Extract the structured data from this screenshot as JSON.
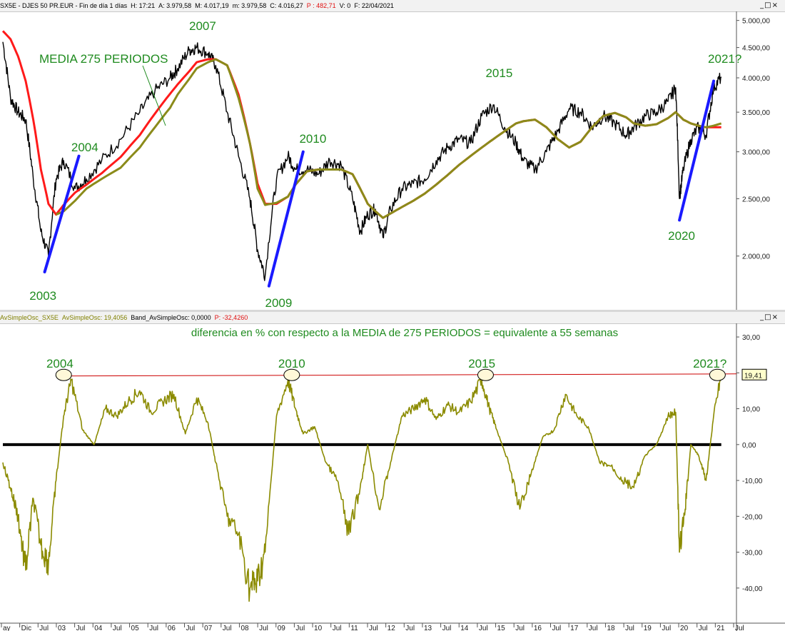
{
  "top_pane": {
    "title_parts": [
      {
        "text": "SX5E - DJES 50 PR.EUR - Fin de día 1 días",
        "color": "#000000"
      },
      {
        "text": "H: 17:21",
        "color": "#000000"
      },
      {
        "text": "A: 3.979,58",
        "color": "#000000"
      },
      {
        "text": "M: 4.017,19",
        "color": "#000000"
      },
      {
        "text": "m: 3.979,58",
        "color": "#000000"
      },
      {
        "text": "C: 4.016,27",
        "color": "#000000"
      },
      {
        "text": "P : 482,71",
        "color": "#e01010"
      },
      {
        "text": "V: 0",
        "color": "#000000"
      },
      {
        "text": "F: 22/04/2021",
        "color": "#000000"
      }
    ],
    "window_buttons": "_□×"
  },
  "bottom_pane": {
    "title_parts": [
      {
        "text": "AvSimpleOsc_SX5E",
        "color": "#808000"
      },
      {
        "text": "AvSimpleOsc: 19,4056",
        "color": "#808000"
      },
      {
        "text": "Band_AvSimpleOsc: 0,0000",
        "color": "#000000"
      },
      {
        "text": "P: -32,4260",
        "color": "#e01010"
      }
    ],
    "window_buttons": "_□×"
  },
  "colors": {
    "price": "#000000",
    "ma_red": "#ff1a1a",
    "ma_olive": "#8b8b1a",
    "trend_blue": "#1a1aff",
    "osc": "#8b8b00",
    "annotation": "#1f8b1f",
    "ref_line": "#cc0000"
  },
  "x_axis": {
    "labels": [
      "ay",
      "Dic",
      "Jul",
      "03",
      "Jul",
      "04",
      "Jul",
      "05",
      "Jul",
      "06",
      "Jul",
      "07",
      "Jul",
      "08",
      "Jul",
      "09",
      "Jul",
      "10",
      "Jul",
      "11",
      "Jul",
      "12",
      "Jul",
      "13",
      "Jul",
      "14",
      "Jul",
      "15",
      "Jul",
      "16",
      "Jul",
      "17",
      "Jul",
      "18",
      "Jul",
      "19",
      "Jul",
      "20",
      "Jul",
      "21",
      "Jul"
    ]
  },
  "chart_data": [
    {
      "type": "line",
      "y_scale": "log",
      "ylim": [
        1650,
        5150
      ],
      "yticks": [
        "5.000,00",
        "4.500,00",
        "4.000,00",
        "3.500,00",
        "3.000,00",
        "2.500,00",
        "2.000,00"
      ],
      "ytick_values": [
        5000,
        4500,
        4000,
        3500,
        3000,
        2500,
        2000
      ],
      "x": [
        2002.4,
        2002.6,
        2002.8,
        2003.0,
        2003.2,
        2003.4,
        2003.6,
        2003.8,
        2004.0,
        2004.3,
        2004.6,
        2005.0,
        2005.5,
        2006.0,
        2006.4,
        2006.8,
        2007.0,
        2007.3,
        2007.5,
        2007.8,
        2008.0,
        2008.3,
        2008.6,
        2008.9,
        2009.1,
        2009.3,
        2009.6,
        2009.9,
        2010.1,
        2010.4,
        2010.7,
        2011.0,
        2011.3,
        2011.6,
        2011.8,
        2012.0,
        2012.2,
        2012.4,
        2012.6,
        2012.9,
        2013.2,
        2013.5,
        2013.8,
        2014.1,
        2014.4,
        2014.7,
        2015.0,
        2015.3,
        2015.6,
        2015.9,
        2016.1,
        2016.4,
        2016.7,
        2017.0,
        2017.3,
        2017.6,
        2017.9,
        2018.2,
        2018.5,
        2018.8,
        2019.0,
        2019.3,
        2019.6,
        2019.9,
        2020.1,
        2020.2,
        2020.3,
        2020.5,
        2020.7,
        2020.9,
        2021.1,
        2021.3
      ],
      "series": [
        {
          "key": "price",
          "style": "price",
          "values": [
            4600,
            3700,
            3500,
            3400,
            2700,
            2200,
            2000,
            2700,
            2900,
            2600,
            2700,
            2900,
            3150,
            3500,
            3800,
            4000,
            4150,
            4450,
            4500,
            4400,
            4200,
            3500,
            2950,
            2500,
            2050,
            1850,
            2700,
            2950,
            2800,
            2800,
            2750,
            2900,
            2850,
            2500,
            2200,
            2350,
            2400,
            2150,
            2400,
            2600,
            2650,
            2700,
            2900,
            3050,
            3150,
            3100,
            3450,
            3600,
            3300,
            3100,
            2900,
            2800,
            3000,
            3250,
            3550,
            3500,
            3300,
            3450,
            3350,
            3200,
            3300,
            3450,
            3500,
            3650,
            3850,
            2500,
            2800,
            3150,
            3300,
            3200,
            3850,
            4016
          ]
        },
        {
          "key": "ma_red",
          "style": "ma_red",
          "values": [
            4800,
            4650,
            4350,
            3950,
            3400,
            2800,
            2450,
            2350,
            2440,
            2560,
            2640,
            2760,
            2940,
            3200,
            3480,
            3760,
            3900,
            4100,
            4250,
            4300,
            4300,
            4200,
            3750,
            3100,
            2650,
            2450,
            2450,
            2520,
            2640,
            2780,
            2800,
            2800,
            2800,
            2750,
            2600,
            2450,
            2380,
            2320,
            2360,
            2420,
            2480,
            2550,
            2640,
            2740,
            2850,
            2950,
            3050,
            3150,
            3250,
            3350,
            3380,
            3400,
            3300,
            3150,
            3050,
            3120,
            3300,
            3450,
            3490,
            3430,
            3350,
            3320,
            3340,
            3420,
            3500,
            3450,
            3400,
            3350,
            3320,
            3300,
            3300,
            3300
          ]
        },
        {
          "key": "ma_olive",
          "style": "ma_olive",
          "values": [
            null,
            null,
            null,
            null,
            null,
            null,
            null,
            2350,
            2380,
            2480,
            2600,
            2700,
            2820,
            3050,
            3300,
            3560,
            3750,
            3980,
            4150,
            4250,
            4300,
            4200,
            3700,
            3100,
            2600,
            2440,
            2460,
            2520,
            2640,
            2780,
            2800,
            2800,
            2800,
            2750,
            2600,
            2450,
            2380,
            2320,
            2360,
            2420,
            2480,
            2550,
            2640,
            2740,
            2850,
            2950,
            3050,
            3150,
            3250,
            3350,
            3380,
            3400,
            3300,
            3150,
            3050,
            3120,
            3300,
            3450,
            3490,
            3430,
            3350,
            3320,
            3340,
            3420,
            3500,
            3450,
            3400,
            3350,
            3320,
            3300,
            3320,
            3350
          ]
        }
      ],
      "trend_lines": [
        {
          "label": "2003",
          "from": [
            2003.5,
            1880
          ],
          "to": [
            2004.4,
            2950
          ]
        },
        {
          "label": "2009",
          "from": [
            2009.4,
            1780
          ],
          "to": [
            2010.3,
            3000
          ]
        },
        {
          "label": "2020",
          "from": [
            2020.2,
            2300
          ],
          "to": [
            2021.1,
            3950
          ]
        }
      ],
      "annotations": [
        "2003",
        "2004",
        "2007",
        "2009",
        "2010",
        "2015",
        "2020",
        "2021?",
        "MEDIA 275 PERIODOS"
      ]
    },
    {
      "type": "line",
      "ylim": [
        -47,
        33
      ],
      "yticks": [
        "30,00",
        "20,00",
        "10,00",
        "0,00",
        "-10,00",
        "-20,00",
        "-30,00",
        "-40,00"
      ],
      "ytick_values": [
        30,
        20,
        10,
        0,
        -10,
        -20,
        -30,
        -40
      ],
      "x": [
        2002.4,
        2002.6,
        2002.8,
        2003.0,
        2003.2,
        2003.4,
        2003.6,
        2003.8,
        2004.0,
        2004.2,
        2004.5,
        2004.8,
        2005.1,
        2005.4,
        2005.7,
        2006.0,
        2006.3,
        2006.6,
        2006.9,
        2007.2,
        2007.5,
        2007.8,
        2008.0,
        2008.3,
        2008.6,
        2008.9,
        2009.1,
        2009.3,
        2009.6,
        2009.9,
        2010.1,
        2010.3,
        2010.6,
        2010.9,
        2011.2,
        2011.5,
        2011.8,
        2012.0,
        2012.3,
        2012.6,
        2012.9,
        2013.2,
        2013.5,
        2013.8,
        2014.1,
        2014.4,
        2014.7,
        2015.0,
        2015.2,
        2015.4,
        2015.7,
        2016.0,
        2016.3,
        2016.6,
        2016.9,
        2017.2,
        2017.5,
        2017.8,
        2018.1,
        2018.4,
        2018.7,
        2019.0,
        2019.3,
        2019.6,
        2019.9,
        2020.1,
        2020.2,
        2020.35,
        2020.5,
        2020.7,
        2020.9,
        2021.1,
        2021.3
      ],
      "series": [
        {
          "key": "osc",
          "style": "osc",
          "values": [
            -5,
            -12,
            -20,
            -35,
            -15,
            -28,
            -33,
            -10,
            8,
            18,
            4,
            0,
            10,
            8,
            12,
            15,
            9,
            12,
            14,
            3,
            13,
            6,
            -5,
            -20,
            -25,
            -40,
            -38,
            -30,
            8,
            18,
            10,
            3,
            5,
            -5,
            -10,
            -25,
            -12,
            0,
            -18,
            -5,
            8,
            10,
            13,
            7,
            11,
            9,
            12,
            18,
            10,
            4,
            -5,
            -18,
            -8,
            2,
            4,
            14,
            8,
            5,
            -5,
            -6,
            -10,
            -12,
            -3,
            0,
            8,
            9,
            -30,
            -18,
            0,
            -3,
            -10,
            8,
            19.41
          ]
        }
      ],
      "zero_band": 0,
      "ref_value": "19,41",
      "ref_y": 19.41,
      "circled": [
        "2004",
        "2010",
        "2015",
        "2021?"
      ],
      "title": "diferencia en % con respecto a la MEDIA de 275 PERIODOS = equivalente a 55 semanas",
      "annotations": [
        "2004",
        "2010",
        "2015",
        "2021?"
      ]
    }
  ]
}
